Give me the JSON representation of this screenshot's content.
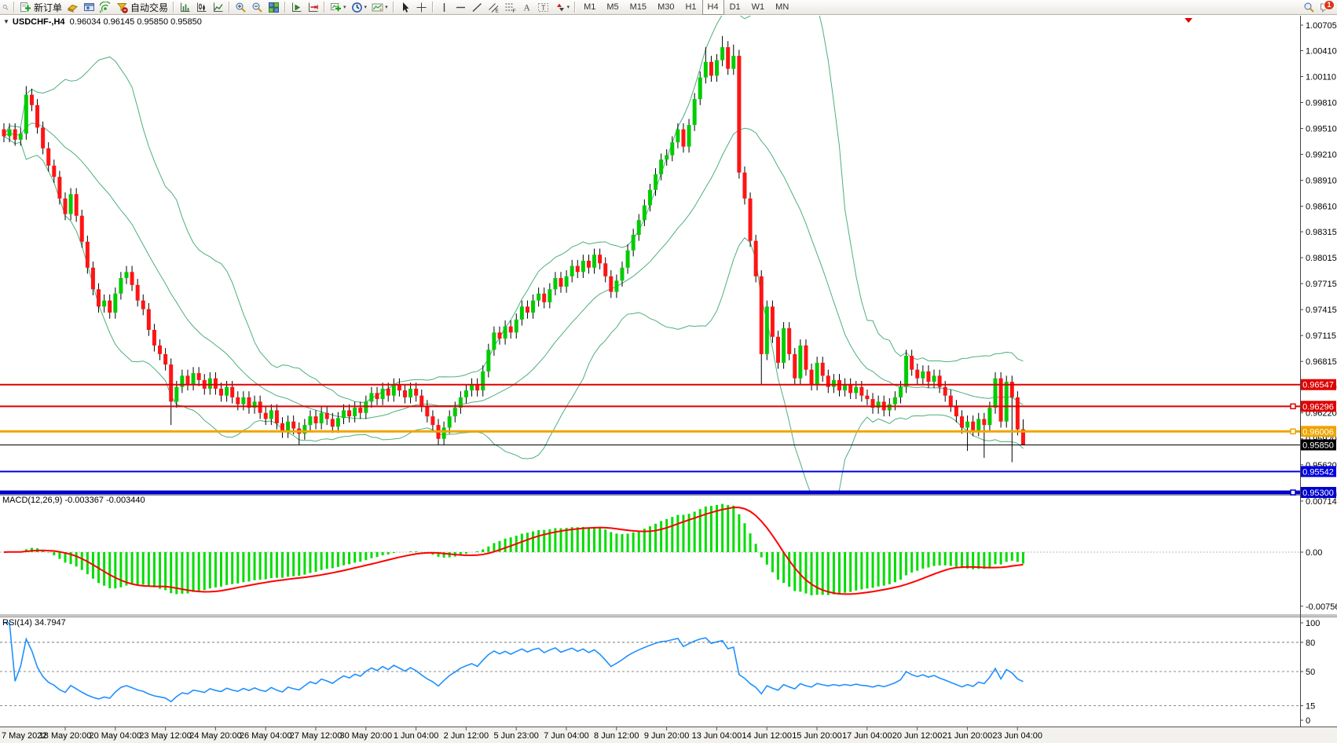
{
  "toolbar": {
    "new_order_label": "新订单",
    "autotrading_label": "自动交易",
    "timeframes": [
      "M1",
      "M5",
      "M15",
      "M30",
      "H1",
      "H4",
      "D1",
      "W1",
      "MN"
    ],
    "active_timeframe": "H4",
    "notification_count": "1",
    "items": [
      {
        "name": "clipped-left-icon",
        "icon": "mag",
        "clip": true
      },
      {
        "sep": true
      },
      {
        "name": "new-order-button",
        "icon": "neworder",
        "label_key": "new_order_label"
      },
      {
        "name": "profiles-button",
        "icon": "gold"
      },
      {
        "name": "market-watch-button",
        "icon": "market"
      },
      {
        "name": "signals-button",
        "icon": "signal"
      },
      {
        "name": "autotrading-button",
        "icon": "funnel",
        "label_key": "autotrading_label"
      },
      {
        "sep": true
      },
      {
        "name": "bar-chart-button",
        "icon": "bars"
      },
      {
        "name": "candlestick-chart-button",
        "icon": "candles"
      },
      {
        "name": "line-chart-button",
        "icon": "linec"
      },
      {
        "sep": true
      },
      {
        "name": "zoom-in-button",
        "icon": "magp"
      },
      {
        "name": "zoom-out-button",
        "icon": "magm"
      },
      {
        "name": "tile-windows-button",
        "icon": "tile"
      },
      {
        "sep": true
      },
      {
        "name": "auto-scroll-button",
        "icon": "autoscroll"
      },
      {
        "name": "chart-shift-button",
        "icon": "shift"
      },
      {
        "sep": true
      },
      {
        "name": "indicators-button",
        "icon": "indicators",
        "caret": true
      },
      {
        "name": "periods-button",
        "icon": "clock",
        "caret": true
      },
      {
        "name": "templates-button",
        "icon": "template",
        "caret": true
      },
      {
        "sep": true
      },
      {
        "name": "cursor-button",
        "icon": "cursor"
      },
      {
        "name": "crosshair-button",
        "icon": "crosshair"
      },
      {
        "sep": true
      },
      {
        "name": "vertical-line-button",
        "icon": "vline"
      },
      {
        "name": "horizontal-line-button",
        "icon": "hline"
      },
      {
        "name": "trendline-button",
        "icon": "trend"
      },
      {
        "name": "channel-button",
        "icon": "channel"
      },
      {
        "name": "fibonacci-button",
        "icon": "fibo"
      },
      {
        "name": "text-button",
        "icon": "textA"
      },
      {
        "name": "label-button",
        "icon": "labelT"
      },
      {
        "name": "arrows-button",
        "icon": "arrows",
        "caret": true
      },
      {
        "sep": true
      }
    ]
  },
  "chart": {
    "title": "USDCHF-,H4",
    "ohlc": "0.96034 0.96145 0.95850 0.95850",
    "price_axis_ticks": [
      "1.00705",
      "1.00410",
      "1.00110",
      "0.99810",
      "0.99510",
      "0.99210",
      "0.98910",
      "0.98610",
      "0.98315",
      "0.98015",
      "0.97715",
      "0.97415",
      "0.97115",
      "0.96815",
      "0.96520",
      "0.96220",
      "0.95920",
      "0.95620"
    ],
    "levels": [
      {
        "price": 0.96547,
        "label": "0.96547",
        "color": "#dd0000",
        "width": 2,
        "marker": false
      },
      {
        "price": 0.96296,
        "label": "0.96296",
        "color": "#dd0000",
        "width": 2,
        "marker": true
      },
      {
        "price": 0.96006,
        "label": "0.96006",
        "color": "#f0a400",
        "width": 3,
        "marker": true
      },
      {
        "price": 0.9585,
        "label": "0.95850",
        "color": "#000000",
        "width": 1,
        "marker": false
      },
      {
        "price": 0.95542,
        "label": "0.95542",
        "color": "#0000dd",
        "width": 2,
        "marker": false
      },
      {
        "price": 0.953,
        "label": "0.95300",
        "color": "#0000cc",
        "width": 5,
        "marker": true
      }
    ]
  },
  "macd": {
    "label": "MACD(12,26,9) -0.003367 -0.003440",
    "axis": [
      {
        "label": "0.007142",
        "value": 0.007142
      },
      {
        "label": "0.00",
        "value": 0
      },
      {
        "label": "-0.007561",
        "value": -0.007561
      }
    ]
  },
  "rsi": {
    "label": "RSI(14) 34.7947",
    "axis": [
      {
        "label": "100",
        "value": 100,
        "dashed": false
      },
      {
        "label": "80",
        "value": 80,
        "dashed": true
      },
      {
        "label": "50",
        "value": 50,
        "dashed": true
      },
      {
        "label": "15",
        "value": 15,
        "dashed": true
      },
      {
        "label": "0",
        "value": 0,
        "dashed": false
      }
    ]
  },
  "colors": {
    "candle_up": "#00cc00",
    "candle_down": "#ff1414",
    "wick": "#000000",
    "bands": "#4daf7c",
    "macd_histogram": "#00dd00",
    "macd_signal": "#ff0000",
    "rsi_line": "#1e90ff"
  },
  "chart_data": {
    "type": "candlestick",
    "symbol": "USDCHF-",
    "timeframe": "H4",
    "title": "USDCHF-,H4",
    "price_range": [
      0.953,
      1.00705
    ],
    "first_open": 0.995,
    "closes": [
      0.9942,
      0.995,
      0.9938,
      0.9945,
      0.999,
      0.9978,
      0.9952,
      0.9928,
      0.9908,
      0.9895,
      0.987,
      0.9852,
      0.9875,
      0.985,
      0.982,
      0.979,
      0.9765,
      0.9745,
      0.9752,
      0.9738,
      0.976,
      0.9778,
      0.9785,
      0.977,
      0.9752,
      0.9742,
      0.9718,
      0.97,
      0.969,
      0.9678,
      0.9635,
      0.9652,
      0.9665,
      0.9655,
      0.9668,
      0.966,
      0.965,
      0.9662,
      0.965,
      0.9642,
      0.9652,
      0.964,
      0.9632,
      0.964,
      0.9628,
      0.9635,
      0.9622,
      0.9615,
      0.9625,
      0.961,
      0.96,
      0.9612,
      0.9604,
      0.9598,
      0.9608,
      0.9618,
      0.961,
      0.9622,
      0.9615,
      0.9606,
      0.9616,
      0.9625,
      0.9618,
      0.9628,
      0.9622,
      0.9635,
      0.9645,
      0.9638,
      0.965,
      0.9642,
      0.9655,
      0.9648,
      0.964,
      0.965,
      0.9642,
      0.963,
      0.9618,
      0.9608,
      0.9592,
      0.9605,
      0.9618,
      0.9628,
      0.964,
      0.9648,
      0.9655,
      0.9648,
      0.967,
      0.9695,
      0.9715,
      0.9708,
      0.9722,
      0.9715,
      0.973,
      0.9745,
      0.9738,
      0.9752,
      0.976,
      0.975,
      0.9765,
      0.9778,
      0.9768,
      0.978,
      0.9792,
      0.9785,
      0.9798,
      0.979,
      0.9805,
      0.9795,
      0.978,
      0.9762,
      0.9775,
      0.979,
      0.981,
      0.9828,
      0.9845,
      0.9862,
      0.988,
      0.9898,
      0.9915,
      0.992,
      0.9935,
      0.995,
      0.993,
      0.9955,
      0.9985,
      1.001,
      1.0028,
      1.0012,
      1.003,
      1.0045,
      1.002,
      1.0035,
      0.99,
      0.987,
      0.9821,
      0.978,
      0.969,
      0.9745,
      0.971,
      0.968,
      0.972,
      0.969,
      0.9662,
      0.97,
      0.9672,
      0.9655,
      0.968,
      0.9665,
      0.9652,
      0.966,
      0.9648,
      0.9655,
      0.9645,
      0.9652,
      0.9642,
      0.9638,
      0.9628,
      0.9635,
      0.9625,
      0.9632,
      0.964,
      0.9652,
      0.9688,
      0.9672,
      0.9662,
      0.967,
      0.9658,
      0.9665,
      0.9652,
      0.9642,
      0.963,
      0.9618,
      0.9605,
      0.9612,
      0.9602,
      0.9615,
      0.9608,
      0.9628,
      0.9662,
      0.9612,
      0.9658,
      0.964,
      0.9603,
      0.9585
    ],
    "wick_overrides": {
      "4": [
        1.0,
        null
      ],
      "30": [
        null,
        0.9608
      ],
      "53": [
        null,
        0.9585
      ],
      "78": [
        null,
        0.9585
      ],
      "126": [
        1.0045,
        null
      ],
      "129": [
        1.0058,
        null
      ],
      "131": [
        1.0048,
        null
      ],
      "136": [
        null,
        0.9655
      ],
      "173": [
        null,
        0.9578
      ],
      "176": [
        null,
        0.957
      ],
      "181": [
        null,
        0.9565
      ],
      "183": [
        0.96145,
        0.9585
      ]
    },
    "overlays": [
      {
        "name": "Bollinger Bands",
        "period": 20,
        "deviation": 2
      }
    ],
    "indicators": [
      {
        "name": "MACD",
        "params": "12,26,9",
        "value": "-0.003367",
        "signal": "-0.003440"
      },
      {
        "name": "RSI",
        "params": "14",
        "value": "34.7947"
      }
    ],
    "x_labels": [
      "7 May 2022",
      "18 May 20:00",
      "20 May 04:00",
      "23 May 12:00",
      "24 May 20:00",
      "26 May 04:00",
      "27 May 12:00",
      "30 May 20:00",
      "1 Jun 04:00",
      "2 Jun 12:00",
      "5 Jun 23:00",
      "7 Jun 04:00",
      "8 Jun 12:00",
      "9 Jun 20:00",
      "13 Jun 04:00",
      "14 Jun 12:00",
      "15 Jun 20:00",
      "17 Jun 04:00",
      "20 Jun 12:00",
      "21 Jun 20:00",
      "23 Jun 04:00"
    ]
  }
}
